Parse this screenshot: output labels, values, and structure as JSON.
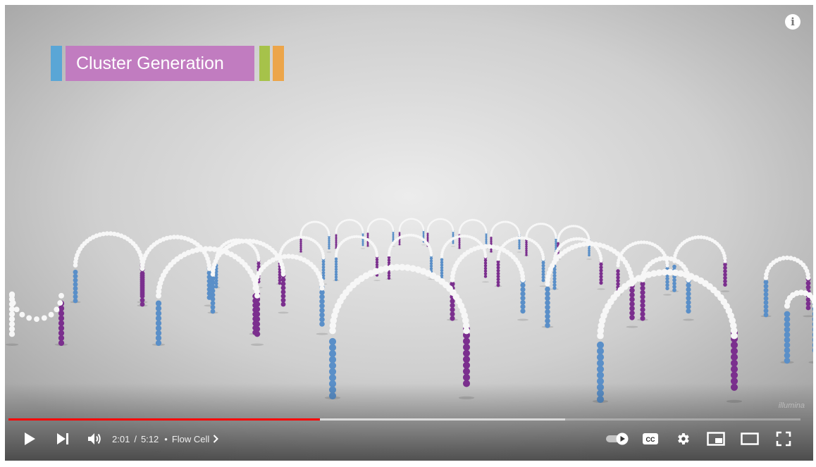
{
  "video": {
    "title_card": "Cluster Generation",
    "info_icon": "info-icon",
    "watermark": "illumina",
    "colors": {
      "title_bg": "#c17cc0",
      "blue": "#5aa6d6",
      "green": "#a6c24a",
      "orange": "#eca54a",
      "purple_bead": "#7b2f8e",
      "blue_bead": "#5a8fc8"
    }
  },
  "progress": {
    "played_fraction": 0.393,
    "buffered_fraction": 0.703,
    "played_color": "#ff0000"
  },
  "controls": {
    "time_current": "2:01",
    "time_duration": "5:12",
    "separator": "/",
    "dot": "•",
    "chapter": "Flow Cell",
    "icons": [
      "play-icon",
      "next-icon",
      "volume-icon",
      "autoplay-toggle-icon",
      "captions-icon",
      "settings-icon",
      "miniplayer-icon",
      "theater-icon",
      "fullscreen-icon"
    ]
  }
}
